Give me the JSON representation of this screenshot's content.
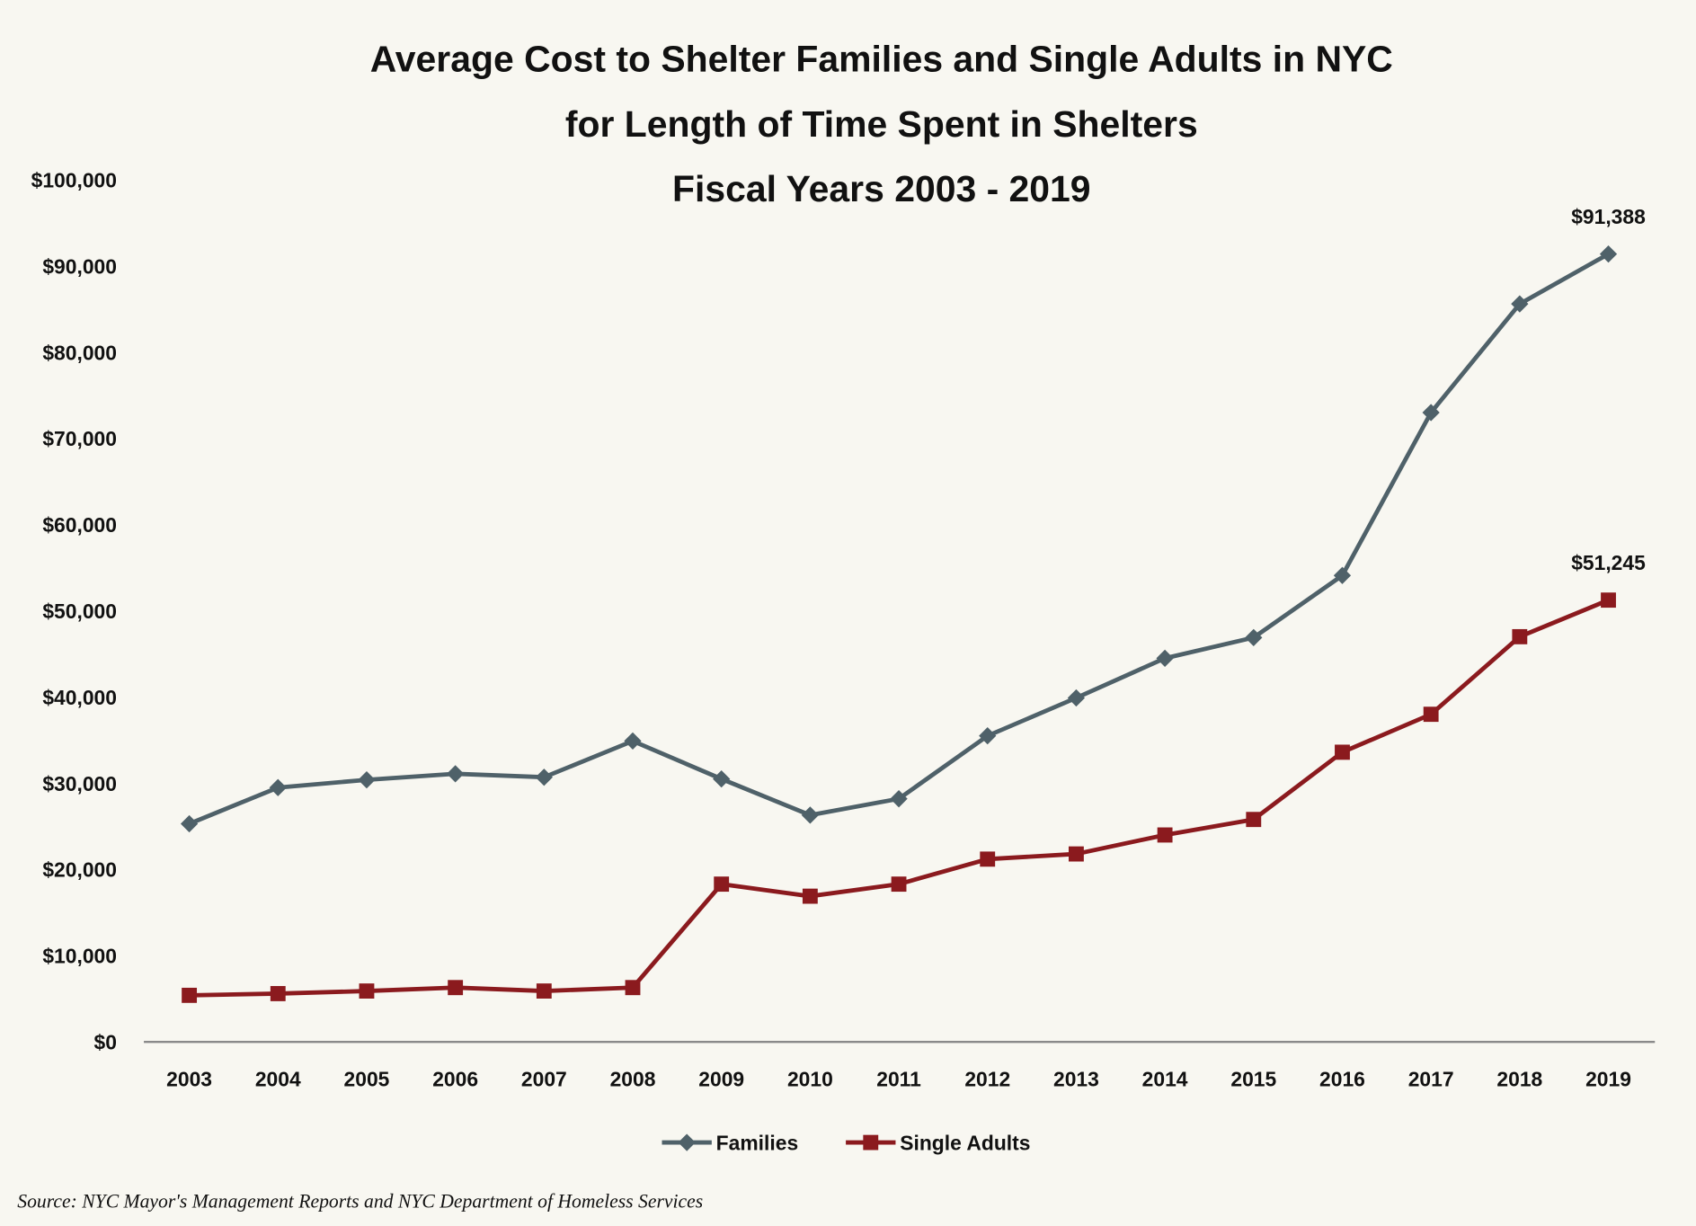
{
  "chart_data": {
    "type": "line",
    "title": [
      "Average Cost to Shelter Families and Single Adults in NYC",
      "for Length of Time Spent in Shelters",
      "Fiscal Years 2003 - 2019"
    ],
    "xlabel": "",
    "ylabel": "",
    "categories": [
      "2003",
      "2004",
      "2005",
      "2006",
      "2007",
      "2008",
      "2009",
      "2010",
      "2011",
      "2012",
      "2013",
      "2014",
      "2015",
      "2016",
      "2017",
      "2018",
      "2019"
    ],
    "ylim": [
      0,
      100000
    ],
    "yticks": [
      0,
      10000,
      20000,
      30000,
      40000,
      50000,
      60000,
      70000,
      80000,
      90000,
      100000
    ],
    "ytick_labels": [
      "$0",
      "$10,000",
      "$20,000",
      "$30,000",
      "$40,000",
      "$50,000",
      "$60,000",
      "$70,000",
      "$80,000",
      "$90,000",
      "$100,000"
    ],
    "grid": false,
    "legend_position": "bottom",
    "series": [
      {
        "name": "Families",
        "color": "#4f6169",
        "marker": "diamond",
        "values": [
          25300,
          29500,
          30400,
          31100,
          30700,
          34900,
          30500,
          26300,
          28200,
          35500,
          39900,
          44500,
          46900,
          54100,
          73000,
          85600,
          91388
        ],
        "end_label": "$91,388"
      },
      {
        "name": "Single Adults",
        "color": "#8b1a1e",
        "marker": "square",
        "values": [
          5400,
          5600,
          5900,
          6300,
          5900,
          6300,
          18300,
          16900,
          18300,
          21200,
          21800,
          24000,
          25800,
          33600,
          38000,
          47000,
          51245
        ],
        "end_label": "$51,245"
      }
    ],
    "source": "Source: NYC Mayor's Management Reports and NYC Department of Homeless Services"
  }
}
